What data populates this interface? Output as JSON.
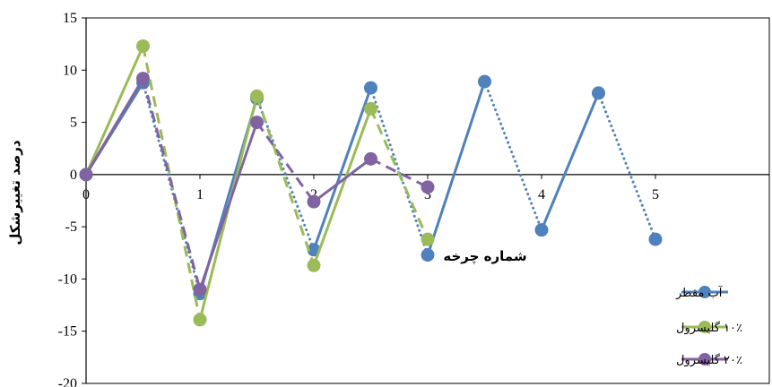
{
  "chart_data": {
    "type": "line",
    "ylabel": "درصد تغییرشکل",
    "xlabel": "شماره چرخه",
    "xlim": [
      0,
      6
    ],
    "ylim": [
      -20,
      15
    ],
    "y_ticks": [
      15,
      10,
      5,
      0,
      -5,
      -10,
      -15,
      -20
    ],
    "x_ticks": [
      0,
      1,
      2,
      3,
      4,
      5
    ],
    "grid": false,
    "legend_position": "bottom-right",
    "series": [
      {
        "name": "آب مقطر",
        "color": "#4F81BD",
        "x": [
          0,
          0.5,
          1,
          1.5,
          2,
          2.5,
          3,
          3.5,
          4,
          4.5,
          5
        ],
        "y": [
          0,
          8.8,
          -11.4,
          7.3,
          -7.2,
          8.3,
          -7.7,
          8.9,
          -5.3,
          7.8,
          -6.2
        ],
        "style": "solid rising, dotted falling"
      },
      {
        "name": "۱۰٪ گلیسرول",
        "color": "#9BBB59",
        "x": [
          0,
          0.5,
          1,
          1.5,
          2,
          2.5,
          3
        ],
        "y": [
          0,
          12.3,
          -13.9,
          7.5,
          -8.7,
          6.3,
          -6.2
        ],
        "style": "solid rising, dashed falling"
      },
      {
        "name": "۲۰٪ گلیسرول",
        "color": "#8064A2",
        "x": [
          0,
          0.5,
          1,
          1.5,
          2,
          2.5,
          3
        ],
        "y": [
          0,
          9.2,
          -11.0,
          5.0,
          -2.6,
          1.5,
          -1.2
        ],
        "style": "solid rising, dashed falling"
      }
    ]
  }
}
